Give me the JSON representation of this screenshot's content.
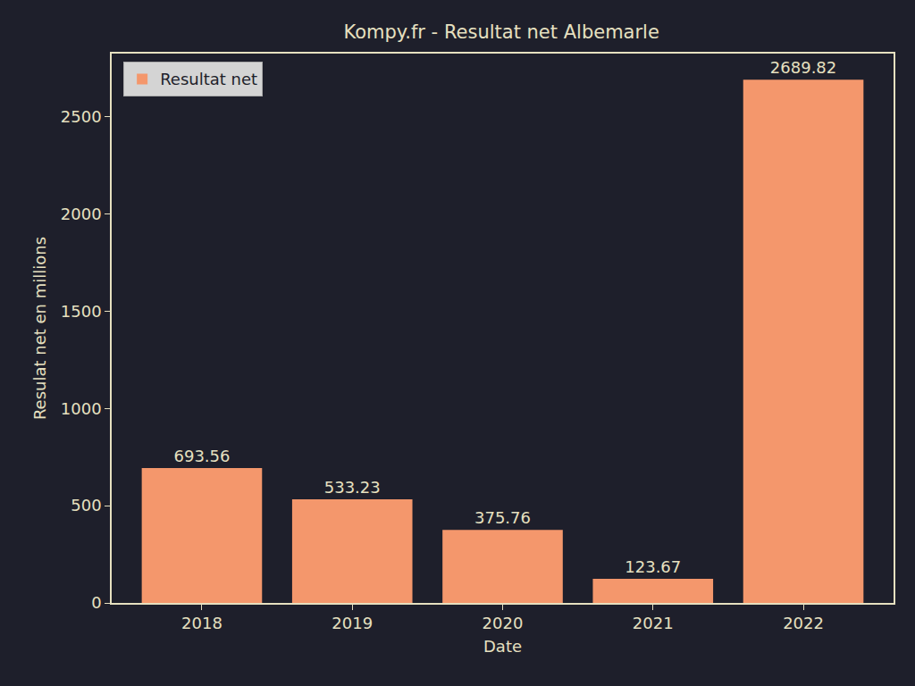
{
  "chart_data": {
    "type": "bar",
    "title": "Kompy.fr - Resultat net Albemarle",
    "x_label": "Date",
    "y_label": "Resulat net en millions",
    "categories": [
      "2018",
      "2019",
      "2020",
      "2021",
      "2022"
    ],
    "series": [
      {
        "name": "Resultat net",
        "color": "#f4976c",
        "values": [
          693.56,
          533.23,
          375.76,
          123.67,
          2689.82
        ]
      }
    ],
    "ylim": [
      0,
      2824
    ],
    "yticks": [
      0,
      500,
      1000,
      1500,
      2000,
      2500
    ],
    "grid": false,
    "legend": "upper left",
    "data_labels": true
  }
}
